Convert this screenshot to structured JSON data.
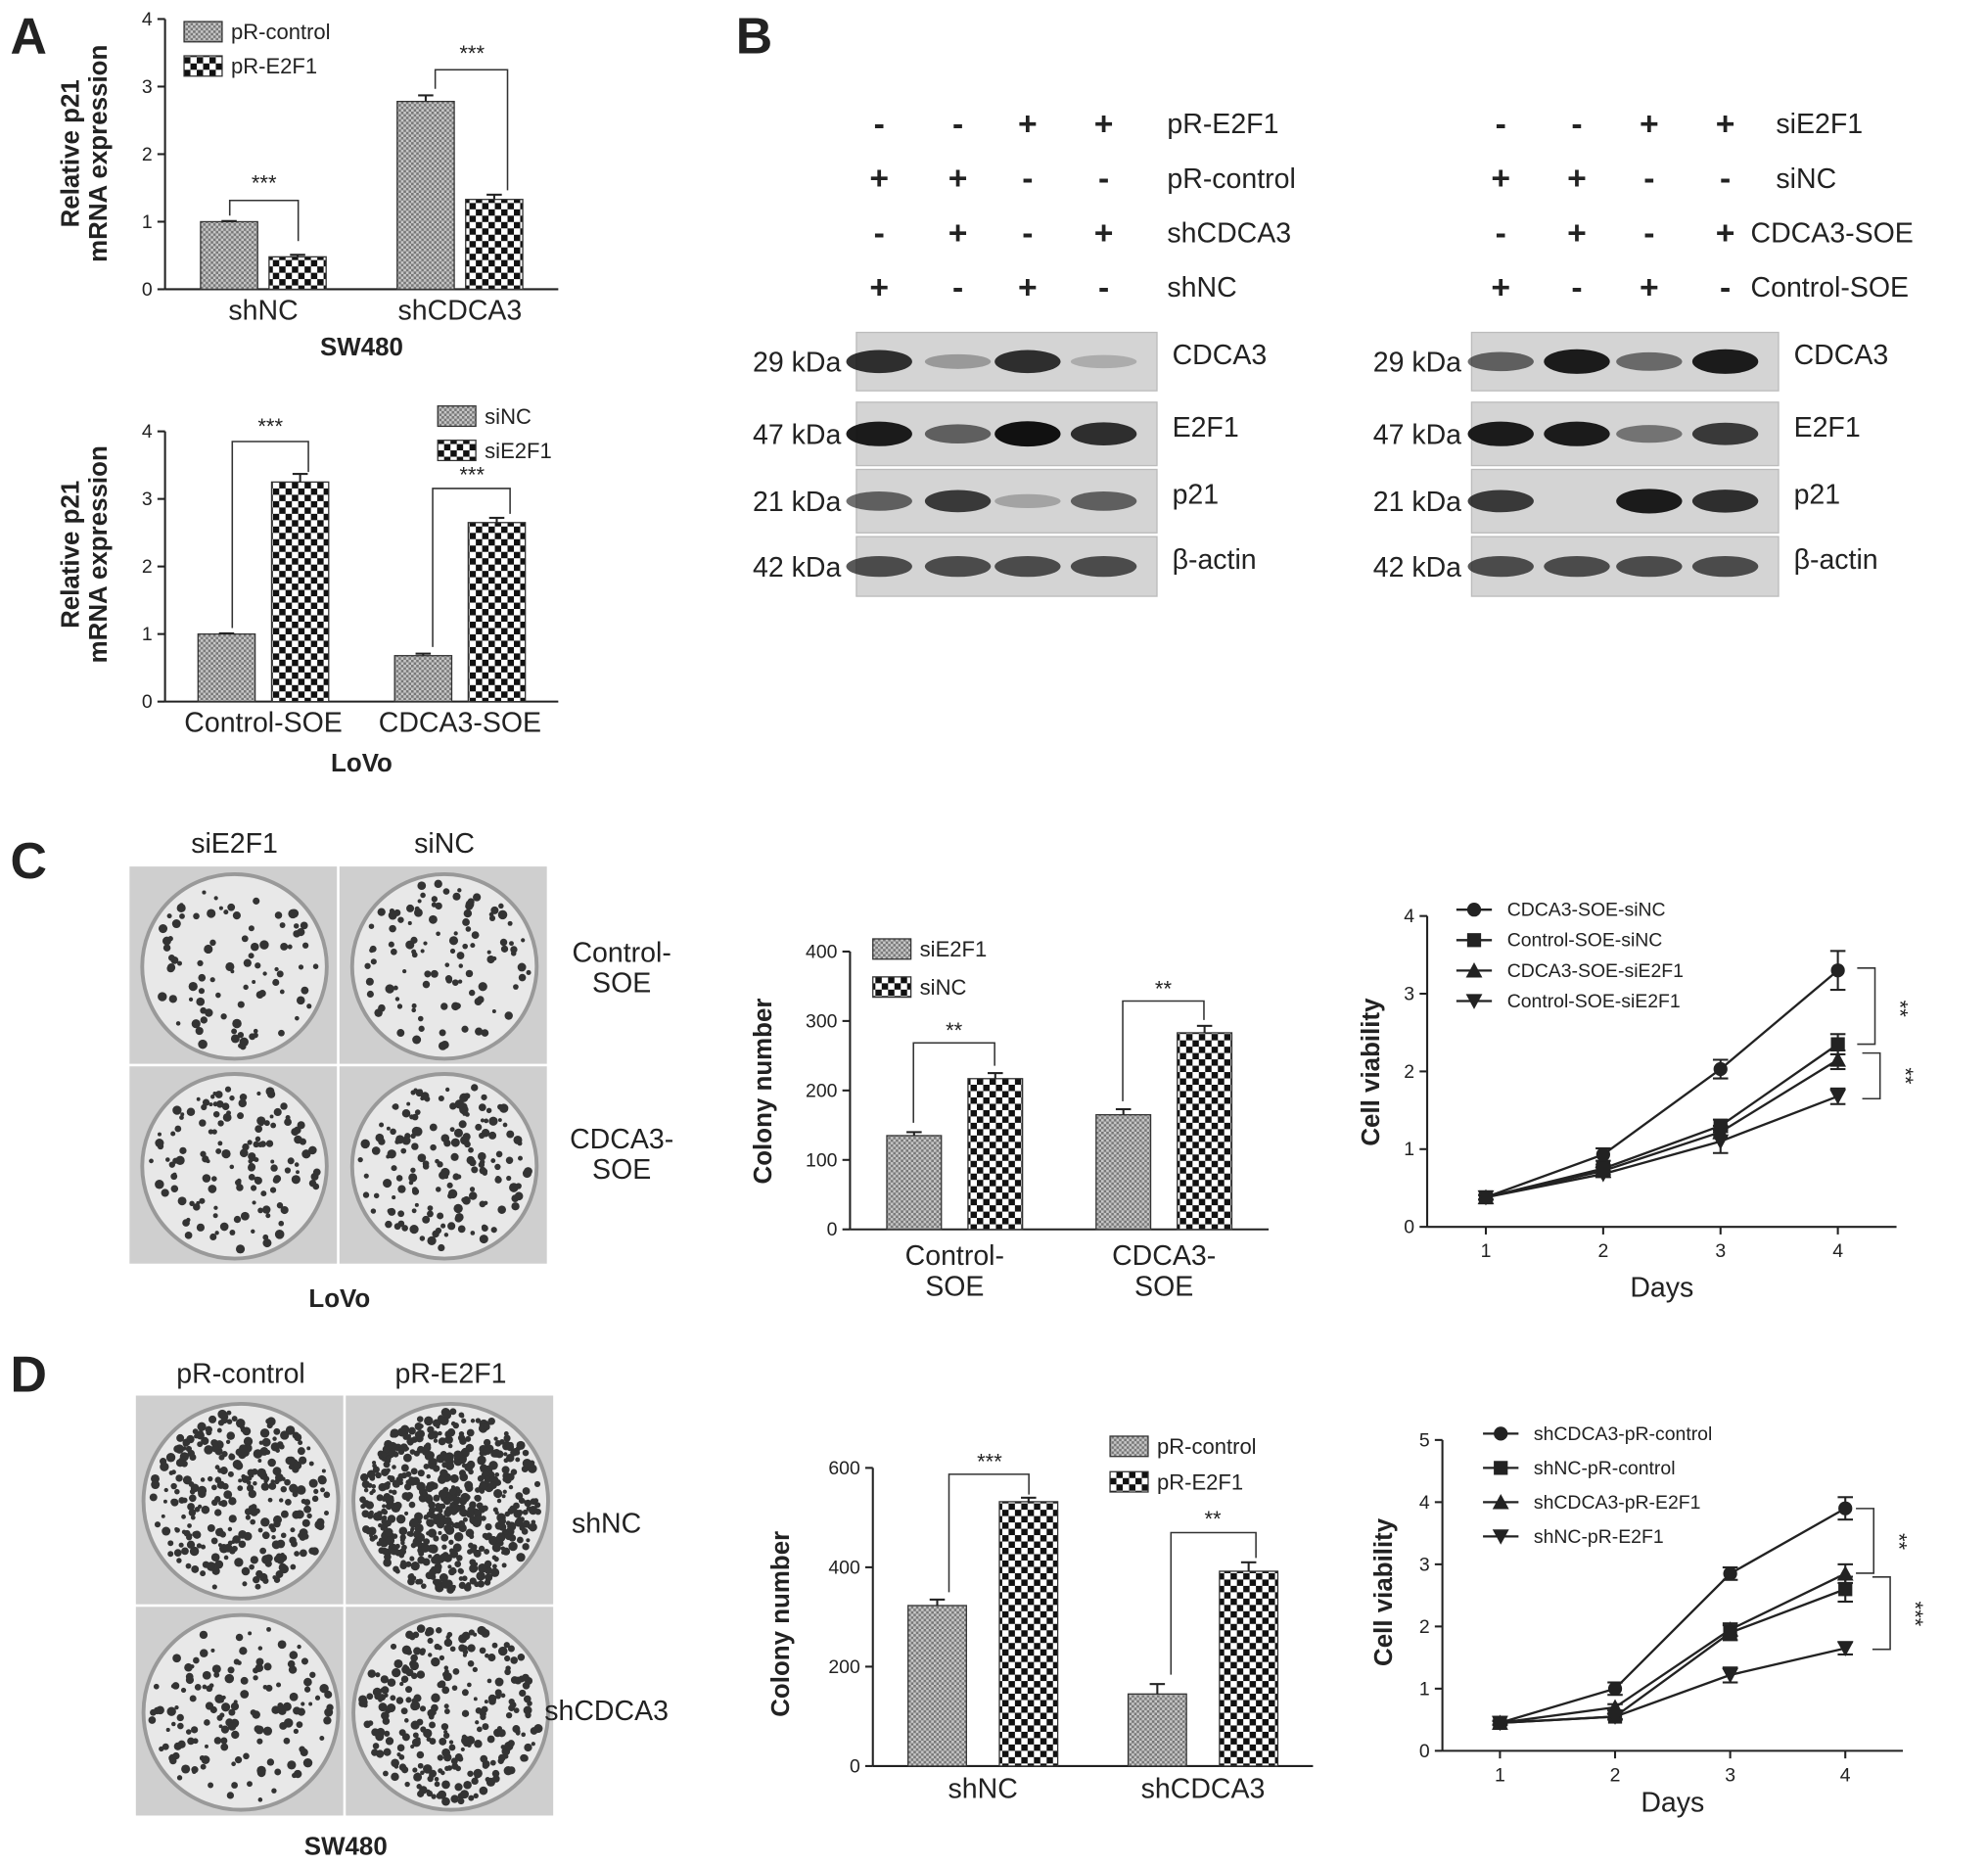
{
  "panels": [
    "A",
    "B",
    "C",
    "D"
  ],
  "blots": [
    {
      "conditions": [
        {
          "label": "pR-E2F1",
          "signs": [
            "-",
            "-",
            "+",
            "+"
          ]
        },
        {
          "label": "pR-control",
          "signs": [
            "+",
            "+",
            "-",
            "-"
          ]
        },
        {
          "label": "shCDCA3",
          "signs": [
            "-",
            "+",
            "-",
            "+"
          ]
        },
        {
          "label": "shNC",
          "signs": [
            "+",
            "-",
            "+",
            "-"
          ]
        }
      ],
      "bands": [
        {
          "size": "29 kDa",
          "name": "CDCA3"
        },
        {
          "size": "47 kDa",
          "name": "E2F1"
        },
        {
          "size": "21 kDa",
          "name": "p21"
        },
        {
          "size": "42 kDa",
          "name": "β-actin"
        }
      ]
    },
    {
      "conditions": [
        {
          "label": "siE2F1",
          "signs": [
            "-",
            "-",
            "+",
            "+"
          ]
        },
        {
          "label": "siNC",
          "signs": [
            "+",
            "+",
            "-",
            "-"
          ]
        },
        {
          "label": "CDCA3-SOE",
          "signs": [
            "-",
            "+",
            "-",
            "+"
          ]
        },
        {
          "label": "Control-SOE",
          "signs": [
            "+",
            "-",
            "+",
            "-"
          ]
        }
      ],
      "bands": [
        {
          "size": "29 kDa",
          "name": "CDCA3"
        },
        {
          "size": "47 kDa",
          "name": "E2F1"
        },
        {
          "size": "21 kDa",
          "name": "p21"
        },
        {
          "size": "42 kDa",
          "name": "β-actin"
        }
      ]
    }
  ],
  "colonies": [
    {
      "columns": [
        "siE2F1",
        "siNC"
      ],
      "rows": [
        "Control-\nSOE",
        "CDCA3-\nSOE"
      ],
      "cell_line": "LoVo"
    },
    {
      "columns": [
        "pR-control",
        "pR-E2F1"
      ],
      "rows": [
        "shNC",
        "shCDCA3"
      ],
      "cell_line": "SW480"
    }
  ],
  "chart_data": [
    {
      "type": "bar",
      "ylabel": "Relative p21\nmRNA expression",
      "xlabel": "SW480",
      "categories": [
        "shNC",
        "shCDCA3"
      ],
      "ylim": [
        0,
        4
      ],
      "yticks": [
        0,
        1,
        2,
        3,
        4
      ],
      "series": [
        {
          "name": "pR-control",
          "color": "#777777",
          "values": [
            1.0,
            2.78
          ],
          "errors": [
            0.01,
            0.09
          ]
        },
        {
          "name": "pR-E2F1",
          "color": "#111111",
          "values": [
            0.48,
            1.33
          ],
          "errors": [
            0.03,
            0.07
          ]
        }
      ],
      "annotations": [
        "***",
        "***"
      ]
    },
    {
      "type": "bar",
      "ylabel": "Relative p21\nmRNA expression",
      "xlabel": "LoVo",
      "categories": [
        "Control-SOE",
        "CDCA3-SOE"
      ],
      "ylim": [
        0,
        4
      ],
      "yticks": [
        0,
        1,
        2,
        3,
        4
      ],
      "series": [
        {
          "name": "siNC",
          "color": "#777777",
          "values": [
            1.0,
            0.68
          ],
          "errors": [
            0.01,
            0.03
          ]
        },
        {
          "name": "siE2F1",
          "color": "#111111",
          "values": [
            3.25,
            2.65
          ],
          "errors": [
            0.12,
            0.07
          ]
        }
      ],
      "annotations": [
        "***",
        "***"
      ]
    },
    {
      "type": "bar",
      "ylabel": "Colony number",
      "categories": [
        "Control-\nSOE",
        "CDCA3-\nSOE"
      ],
      "ylim": [
        0,
        400
      ],
      "yticks": [
        0,
        100,
        200,
        300,
        400
      ],
      "series": [
        {
          "name": "siE2F1",
          "color": "#777777",
          "values": [
            135,
            165
          ],
          "errors": [
            5,
            8
          ]
        },
        {
          "name": "siNC",
          "color": "#111111",
          "values": [
            217,
            283
          ],
          "errors": [
            8,
            10
          ]
        }
      ],
      "annotations": [
        "**",
        "**"
      ]
    },
    {
      "type": "line",
      "ylabel": "Cell viability",
      "xlabel": "Days",
      "x": [
        1,
        2,
        3,
        4
      ],
      "xlim": [
        0.5,
        4.5
      ],
      "xticks": [
        1,
        2,
        3,
        4
      ],
      "ylim": [
        0,
        4
      ],
      "yticks": [
        0,
        1,
        2,
        3,
        4
      ],
      "series": [
        {
          "name": "CDCA3-SOE-siNC",
          "color": "#222222",
          "marker": "circle",
          "values": [
            0.38,
            0.93,
            2.03,
            3.3
          ],
          "errors": [
            0.03,
            0.08,
            0.12,
            0.25
          ]
        },
        {
          "name": "Control-SOE-siNC",
          "color": "#222222",
          "marker": "square",
          "values": [
            0.38,
            0.75,
            1.3,
            2.35
          ],
          "errors": [
            0.03,
            0.05,
            0.08,
            0.13
          ]
        },
        {
          "name": "CDCA3-SOE-siE2F1",
          "color": "#222222",
          "marker": "triangle",
          "values": [
            0.38,
            0.72,
            1.22,
            2.15
          ],
          "errors": [
            0.03,
            0.05,
            0.08,
            0.12
          ]
        },
        {
          "name": "Control-SOE-siE2F1",
          "color": "#222222",
          "marker": "triangle-down",
          "values": [
            0.38,
            0.68,
            1.1,
            1.68
          ],
          "errors": [
            0.03,
            0.04,
            0.15,
            0.1
          ]
        }
      ],
      "annotations": [
        "**",
        "**"
      ]
    },
    {
      "type": "bar",
      "ylabel": "Colony number",
      "categories": [
        "shNC",
        "shCDCA3"
      ],
      "ylim": [
        0,
        600
      ],
      "yticks": [
        0,
        200,
        400,
        600
      ],
      "series": [
        {
          "name": "pR-control",
          "color": "#777777",
          "values": [
            323,
            145
          ],
          "errors": [
            12,
            20
          ]
        },
        {
          "name": "pR-E2F1",
          "color": "#111111",
          "values": [
            532,
            392
          ],
          "errors": [
            8,
            18
          ]
        }
      ],
      "annotations": [
        "***",
        "**"
      ]
    },
    {
      "type": "line",
      "ylabel": "Cell viability",
      "xlabel": "Days",
      "x": [
        1,
        2,
        3,
        4
      ],
      "xlim": [
        0.5,
        4.5
      ],
      "xticks": [
        1,
        2,
        3,
        4
      ],
      "ylim": [
        0,
        5
      ],
      "yticks": [
        0,
        1,
        2,
        3,
        4,
        5
      ],
      "series": [
        {
          "name": "shCDCA3-pR-control",
          "color": "#222222",
          "marker": "circle",
          "values": [
            0.45,
            1.0,
            2.85,
            3.9
          ],
          "errors": [
            0.03,
            0.1,
            0.1,
            0.18
          ]
        },
        {
          "name": "shNC-pR-control",
          "color": "#222222",
          "marker": "square",
          "values": [
            0.45,
            0.55,
            1.9,
            2.6
          ],
          "errors": [
            0.03,
            0.05,
            0.12,
            0.2
          ]
        },
        {
          "name": "shCDCA3-pR-E2F1",
          "color": "#222222",
          "marker": "triangle",
          "values": [
            0.45,
            0.7,
            1.95,
            2.85
          ],
          "errors": [
            0.03,
            0.05,
            0.1,
            0.15
          ]
        },
        {
          "name": "shNC-pR-E2F1",
          "color": "#222222",
          "marker": "triangle-down",
          "values": [
            0.45,
            0.55,
            1.22,
            1.65
          ],
          "errors": [
            0.03,
            0.04,
            0.12,
            0.1
          ]
        }
      ],
      "annotations": [
        "**",
        "***"
      ]
    }
  ]
}
